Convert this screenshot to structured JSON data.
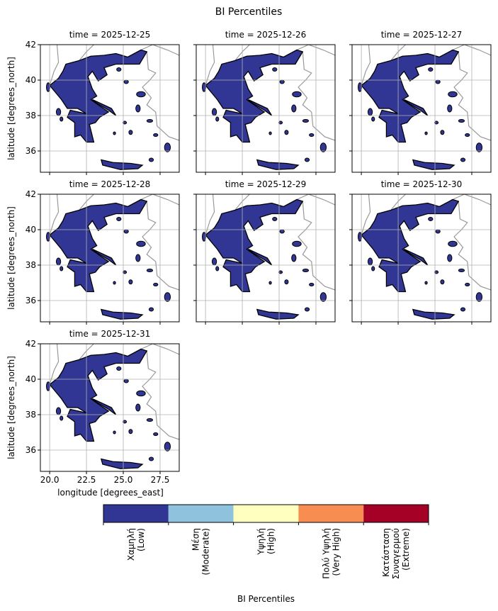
{
  "chart_data": {
    "type": "map",
    "title": "BI Percentiles",
    "panels": [
      {
        "title": "time = 2025-12-25"
      },
      {
        "title": "time = 2025-12-26"
      },
      {
        "title": "time = 2025-12-27"
      },
      {
        "title": "time = 2025-12-28"
      },
      {
        "title": "time = 2025-12-29"
      },
      {
        "title": "time = 2025-12-30"
      },
      {
        "title": "time = 2025-12-31"
      }
    ],
    "xlabel": "longitude [degrees_east]",
    "ylabel": "latitude [degrees_north]",
    "xlim": [
      19.37,
      28.8
    ],
    "ylim": [
      34.8,
      42
    ],
    "xticks": [
      {
        "value": 20,
        "label": "20.0"
      },
      22.5,
      {
        "value": 25,
        "label": "25.0"
      },
      27.5
    ],
    "yticks": [
      36,
      38,
      40,
      42
    ],
    "grid": true,
    "colorbar": {
      "label": "BI Percentiles",
      "categories": [
        {
          "lines": [
            "Χαμηλή",
            "(Low)"
          ],
          "color": "#313695"
        },
        {
          "lines": [
            "Μέση",
            "(Moderate)"
          ],
          "color": "#8fc3dd"
        },
        {
          "lines": [
            "Υψηλή",
            "(High)"
          ],
          "color": "#ffffbf"
        },
        {
          "lines": [
            "Πολύ Υψηλή",
            "(Very High)"
          ],
          "color": "#f88d52"
        },
        {
          "lines": [
            "Κατάσταση",
            "Συναγερμού",
            "(Extreme)"
          ],
          "color": "#a50026"
        }
      ]
    }
  }
}
